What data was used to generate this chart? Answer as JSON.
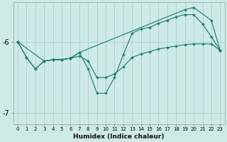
{
  "xlabel": "Humidex (Indice chaleur)",
  "background_color": "#ceeae6",
  "grid_color": "#aed4d0",
  "line_color": "#1a7a6e",
  "xlim": [
    -0.5,
    23.5
  ],
  "ylim": [
    -7.15,
    -5.45
  ],
  "yticks": [
    -7,
    -6
  ],
  "xticks": [
    0,
    1,
    2,
    3,
    4,
    5,
    6,
    7,
    8,
    9,
    10,
    11,
    12,
    13,
    14,
    15,
    16,
    17,
    18,
    19,
    20,
    21,
    22,
    23
  ],
  "line1_x": [
    0,
    1,
    2,
    3,
    4,
    5,
    6,
    7,
    8,
    9,
    10,
    11,
    12,
    13,
    14,
    15,
    16,
    17,
    18,
    19,
    20,
    21,
    22,
    23
  ],
  "line1_y": [
    -6.0,
    -6.22,
    -6.38,
    -6.27,
    -6.25,
    -6.25,
    -6.23,
    -6.2,
    -6.27,
    -6.5,
    -6.5,
    -6.45,
    -6.35,
    -6.22,
    -6.17,
    -6.14,
    -6.1,
    -6.08,
    -6.06,
    -6.04,
    -6.03,
    -6.03,
    -6.03,
    -6.12
  ],
  "line2_x": [
    0,
    1,
    2,
    3,
    4,
    5,
    6,
    7,
    8,
    9,
    10,
    11,
    12,
    13,
    14,
    15,
    16,
    17,
    18,
    19,
    20,
    21,
    22,
    23
  ],
  "line2_y": [
    -6.0,
    -6.22,
    -6.38,
    -6.27,
    -6.25,
    -6.25,
    -6.23,
    -6.15,
    -6.38,
    -6.72,
    -6.72,
    -6.5,
    -6.18,
    -5.88,
    -5.82,
    -5.8,
    -5.74,
    -5.7,
    -5.65,
    -5.62,
    -5.62,
    -5.75,
    -5.93,
    -6.12
  ],
  "line3_x": [
    0,
    3,
    4,
    5,
    6,
    7,
    19,
    20,
    22,
    23
  ],
  "line3_y": [
    -6.0,
    -6.27,
    -6.25,
    -6.25,
    -6.23,
    -6.15,
    -5.55,
    -5.52,
    -5.7,
    -6.12
  ]
}
